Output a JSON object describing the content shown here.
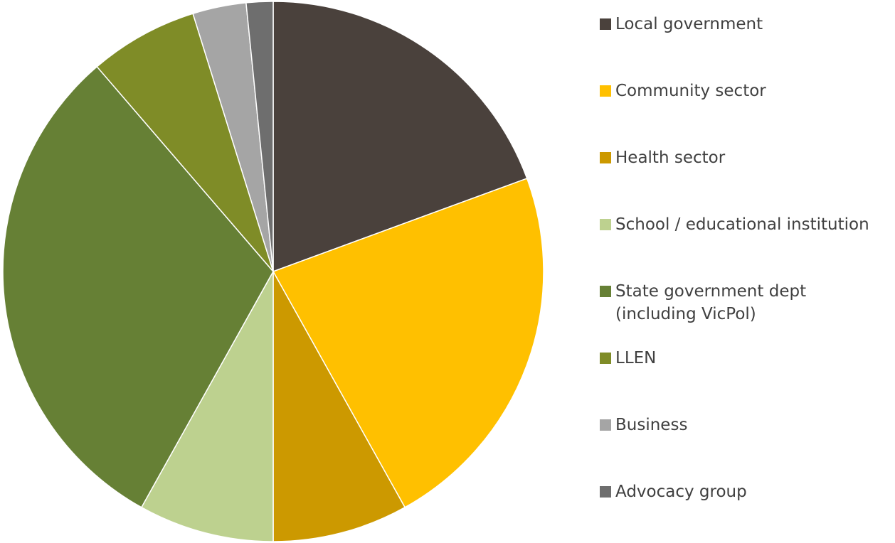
{
  "chart_data": {
    "type": "pie",
    "title": "",
    "slices": [
      {
        "label": "Local government",
        "value": 19.4,
        "color": "#4a413c"
      },
      {
        "label": "Community sector",
        "value": 22.5,
        "color": "#ffc000"
      },
      {
        "label": "Health sector",
        "value": 8.1,
        "color": "#cc9900"
      },
      {
        "label": "School / educational institution",
        "value": 8.1,
        "color": "#bdd18f"
      },
      {
        "label": "State government dept\n(including VicPol)",
        "value": 30.6,
        "color": "#668035"
      },
      {
        "label": "LLEN",
        "value": 6.5,
        "color": "#7f8c27"
      },
      {
        "label": "Business",
        "value": 3.2,
        "color": "#a5a5a5"
      },
      {
        "label": "Advocacy group",
        "value": 1.6,
        "color": "#6e6e6e"
      }
    ],
    "legend_position": "right",
    "start_angle": "12 o'clock",
    "direction": "clockwise"
  }
}
